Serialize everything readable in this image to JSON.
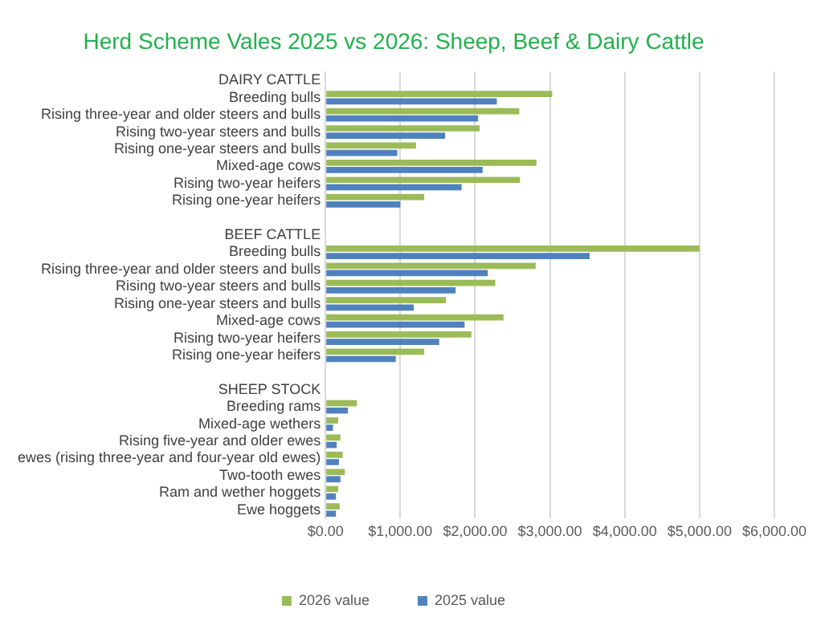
{
  "chart_data": {
    "type": "bar",
    "orientation": "horizontal",
    "title": "Herd Scheme Vales 2025 vs 2026: Sheep, Beef & Dairy Cattle",
    "categories": [
      "DAIRY CATTLE",
      "Breeding bulls",
      "Rising three-year and older steers and bulls",
      "Rising two-year steers and bulls",
      "Rising one-year steers and bulls",
      "Mixed-age cows",
      "Rising two-year heifers",
      "Rising one-year heifers",
      null,
      "BEEF CATTLE",
      "Breeding bulls",
      "Rising three-year and older steers and bulls",
      "Rising two-year steers and bulls",
      "Rising one-year steers and bulls",
      "Mixed-age cows",
      "Rising two-year heifers",
      "Rising one-year heifers",
      null,
      "SHEEP STOCK",
      "Breeding rams",
      "Mixed-age wethers",
      "Rising five-year and older ewes",
      "ewes (rising three-year and four-year old ewes)",
      "Two-tooth ewes",
      "Ram and wether hoggets",
      "Ewe hoggets"
    ],
    "series": [
      {
        "name": "2026 value",
        "color": "#9bbb59",
        "values": [
          null,
          3030,
          2590,
          2060,
          1210,
          2820,
          2600,
          1320,
          null,
          null,
          5000,
          2810,
          2270,
          1610,
          2380,
          1950,
          1320,
          null,
          null,
          420,
          170,
          200,
          230,
          260,
          170,
          190
        ]
      },
      {
        "name": "2025 value",
        "color": "#4f81bd",
        "values": [
          null,
          2290,
          2040,
          1600,
          960,
          2100,
          1820,
          1000,
          null,
          null,
          3530,
          2170,
          1740,
          1180,
          1860,
          1520,
          940,
          null,
          null,
          300,
          100,
          150,
          180,
          200,
          140,
          140
        ]
      }
    ],
    "xlim": [
      0,
      6000
    ],
    "xticks": [
      {
        "value": 0,
        "label": "$0.00"
      },
      {
        "value": 1000,
        "label": "$1,000.00"
      },
      {
        "value": 2000,
        "label": "$2,000.00"
      },
      {
        "value": 3000,
        "label": "$3,000.00"
      },
      {
        "value": 4000,
        "label": "$4,000.00"
      },
      {
        "value": 5000,
        "label": "$5,000.00"
      },
      {
        "value": 6000,
        "label": "$6,000.00"
      }
    ],
    "grid": "x",
    "legend": "bottom"
  }
}
